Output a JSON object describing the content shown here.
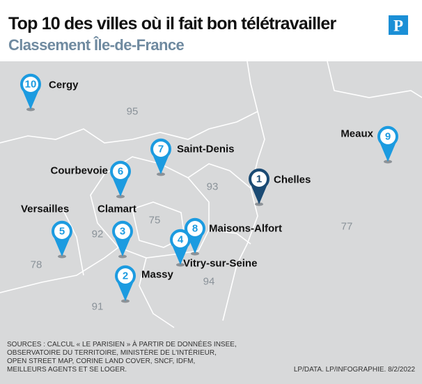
{
  "header": {
    "title": "Top 10 des villes où il fait bon télétravailler",
    "subtitle": "Classement Île-de-France",
    "logo": "P"
  },
  "map": {
    "departments": [
      "95",
      "93",
      "77",
      "75",
      "92",
      "94",
      "78",
      "91"
    ],
    "cities": [
      {
        "rank": 10,
        "name": "Cergy"
      },
      {
        "rank": 7,
        "name": "Saint-Denis"
      },
      {
        "rank": 6,
        "name": "Courbevoie"
      },
      {
        "rank": 1,
        "name": "Chelles"
      },
      {
        "rank": 9,
        "name": "Meaux"
      },
      {
        "rank": 5,
        "name": "Versailles"
      },
      {
        "rank": 3,
        "name": "Clamart"
      },
      {
        "rank": 8,
        "name": "Maisons-Alfort"
      },
      {
        "rank": 4,
        "name": "Vitry-sur-Seine"
      },
      {
        "rank": 2,
        "name": "Massy"
      }
    ]
  },
  "footer": {
    "sources": [
      "SOURCES : CALCUL « LE PARISIEN » À PARTIR DE DONNÉES INSEE,",
      "OBSERVATOIRE DU TERRITOIRE, MINISTÈRE DE L'INTÉRIEUR,",
      "OPEN STREET MAP, CORINE LAND COVER, SNCF, IDFM,",
      "MEILLEURS AGENTS ET SE LOGER."
    ],
    "credit": "LP/DATA. LP/INFOGRAPHIE. 8/2/2022"
  }
}
